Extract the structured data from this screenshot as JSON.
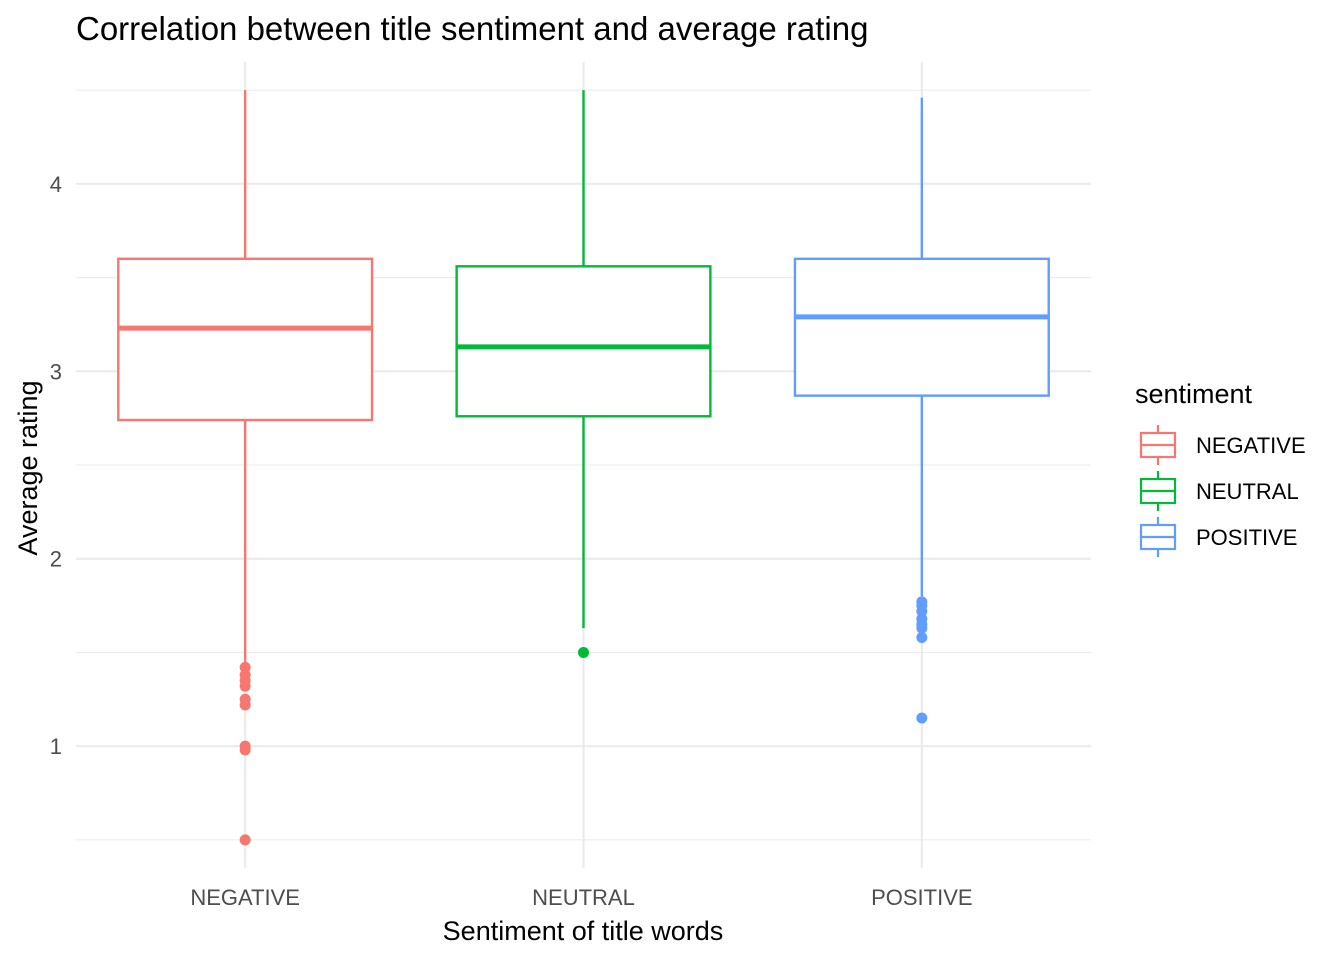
{
  "chart_data": {
    "type": "boxplot",
    "title": "Correlation between title sentiment and average rating",
    "xlabel": "Sentiment of title words",
    "ylabel": "Average rating",
    "ylim": [
      0.35,
      4.65
    ],
    "yticks": [
      1,
      2,
      3,
      4
    ],
    "grid": true,
    "legend": {
      "title": "sentiment",
      "position": "right"
    },
    "categories": [
      "NEGATIVE",
      "NEUTRAL",
      "POSITIVE"
    ],
    "series": [
      {
        "name": "NEGATIVE",
        "color": "#F8766D",
        "whisker_low": 1.45,
        "q1": 2.74,
        "median": 3.23,
        "q3": 3.6,
        "whisker_high": 4.5,
        "outliers": [
          1.42,
          1.38,
          1.35,
          1.32,
          1.25,
          1.22,
          1.0,
          0.98,
          0.5
        ]
      },
      {
        "name": "NEUTRAL",
        "color": "#00BA38",
        "whisker_low": 1.63,
        "q1": 2.76,
        "median": 3.13,
        "q3": 3.56,
        "whisker_high": 4.5,
        "outliers": [
          1.5
        ]
      },
      {
        "name": "POSITIVE",
        "color": "#619CFF",
        "whisker_low": 1.8,
        "q1": 2.87,
        "median": 3.29,
        "q3": 3.6,
        "whisker_high": 4.46,
        "outliers": [
          1.77,
          1.75,
          1.72,
          1.68,
          1.65,
          1.63,
          1.58,
          1.15
        ]
      }
    ]
  }
}
